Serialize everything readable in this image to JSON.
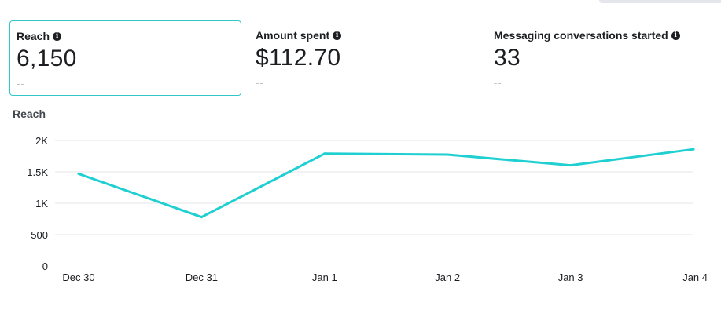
{
  "metrics": [
    {
      "label": "Reach",
      "value": "6,150",
      "change": "--",
      "selected": true
    },
    {
      "label": "Amount spent",
      "value": "$112.70",
      "change": "--",
      "selected": false
    },
    {
      "label": "Messaging conversations started",
      "value": "33",
      "change": "--",
      "selected": false
    }
  ],
  "chart_title": "Reach",
  "chart_data": {
    "type": "line",
    "title": "Reach",
    "categories": [
      "Dec 30",
      "Dec 31",
      "Jan 1",
      "Jan 2",
      "Jan 3",
      "Jan 4"
    ],
    "series": [
      {
        "values": [
          1470,
          780,
          1790,
          1775,
          1605,
          1860
        ],
        "color": "#20cfd1"
      }
    ],
    "y_ticks": [
      0,
      500,
      1000,
      1500,
      2000
    ],
    "y_tick_labels": [
      "0",
      "500",
      "1K",
      "1.5K",
      "2K"
    ],
    "ylim": [
      0,
      2000
    ],
    "grid": true,
    "legend": "none"
  },
  "colors": {
    "accent": "#31c6c9",
    "line": "#20cfd1",
    "grid": "#e4e6eb"
  }
}
